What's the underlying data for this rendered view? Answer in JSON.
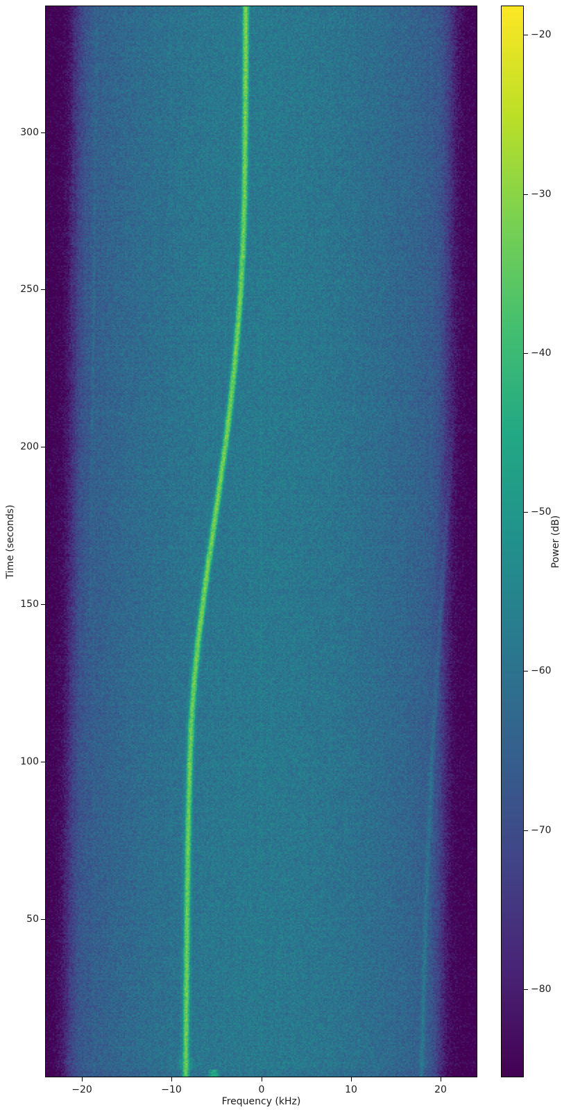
{
  "chart_data": {
    "type": "heatmap",
    "title": "",
    "xlabel": "Frequency (kHz)",
    "ylabel": "Time (seconds)",
    "colorbar_label": "Power (dB)",
    "xlim": [
      -24.05,
      24.05
    ],
    "ylim": [
      0,
      340
    ],
    "grid": false,
    "xtick_values": [
      -20,
      -10,
      0,
      10,
      20
    ],
    "xtick_labels": [
      "−20",
      "−10",
      "0",
      "10",
      "20"
    ],
    "ytick_values": [
      50,
      100,
      150,
      200,
      250,
      300
    ],
    "ytick_labels": [
      "50",
      "100",
      "150",
      "200",
      "250",
      "300"
    ],
    "colorbar_tick_values": [
      -20,
      -30,
      -40,
      -50,
      -60,
      -70,
      -80
    ],
    "colorbar_tick_labels": [
      "−20",
      "−30",
      "−40",
      "−50",
      "−60",
      "−70",
      "−80"
    ],
    "color_range_db": [
      -85.5,
      -18.2
    ],
    "colormap": "viridis",
    "colormap_stops": [
      "#440154",
      "#482475",
      "#414487",
      "#355f8d",
      "#2a788e",
      "#21918c",
      "#22a884",
      "#44bf70",
      "#7ad151",
      "#bddf26",
      "#fde725"
    ],
    "spine_color": "#000000",
    "text_color": "#1c1c1c",
    "background_model": {
      "inband_center_db": -58.3,
      "inband_edge_rolloff_db": 9.5,
      "noise_floor_db": -85.8,
      "noise_speckle_db": 5.4,
      "band_low_edge_khz_at_t0": -21.8,
      "band_low_drift_khz_per_s": 0.0035,
      "band_high_edge_khz_at_t0": 20.0,
      "band_high_drift_khz_per_s": 0.0044,
      "edge_rolloff_width_khz": 0.55
    },
    "main_trace": {
      "description": "bright doppler S-curve carrier",
      "peak_db": -33,
      "points_time_freq": [
        [
          0,
          -8.42
        ],
        [
          20,
          -8.37
        ],
        [
          40,
          -8.31
        ],
        [
          60,
          -8.24
        ],
        [
          80,
          -8.14
        ],
        [
          100,
          -7.97
        ],
        [
          112,
          -7.8
        ],
        [
          125,
          -7.5
        ],
        [
          138,
          -7.05
        ],
        [
          150,
          -6.52
        ],
        [
          162,
          -5.95
        ],
        [
          175,
          -5.28
        ],
        [
          188,
          -4.62
        ],
        [
          200,
          -4.02
        ],
        [
          212,
          -3.5
        ],
        [
          225,
          -3.0
        ],
        [
          238,
          -2.6
        ],
        [
          250,
          -2.28
        ],
        [
          262,
          -2.05
        ],
        [
          275,
          -1.9
        ],
        [
          290,
          -1.82
        ],
        [
          310,
          -1.76
        ],
        [
          340,
          -1.72
        ]
      ]
    },
    "dc_line": {
      "freq_khz": 0,
      "boost_db": 2.2
    },
    "mirror_trace": {
      "description": "faint image trace right side, fades with time",
      "boost_db": 7,
      "points_time_freq": [
        [
          0,
          17.9
        ],
        [
          50,
          18.35
        ],
        [
          100,
          19.05
        ],
        [
          150,
          20.1
        ],
        [
          200,
          21.3
        ],
        [
          260,
          22.5
        ]
      ]
    },
    "spur_lines": [
      {
        "boost_db": 3.2,
        "visible_after_s": 135,
        "points_time_freq": [
          [
            135,
            -19.2
          ],
          [
            340,
            -18.3
          ]
        ]
      },
      {
        "boost_db": 2.4,
        "visible_after_s": 225,
        "points_time_freq": [
          [
            225,
            -21.25
          ],
          [
            340,
            -20.8
          ]
        ]
      }
    ],
    "bottom_burst": {
      "description": "bright smear in first seconds",
      "before_s": 2.3,
      "center_khz": -5.3,
      "peak_db": -44
    }
  }
}
